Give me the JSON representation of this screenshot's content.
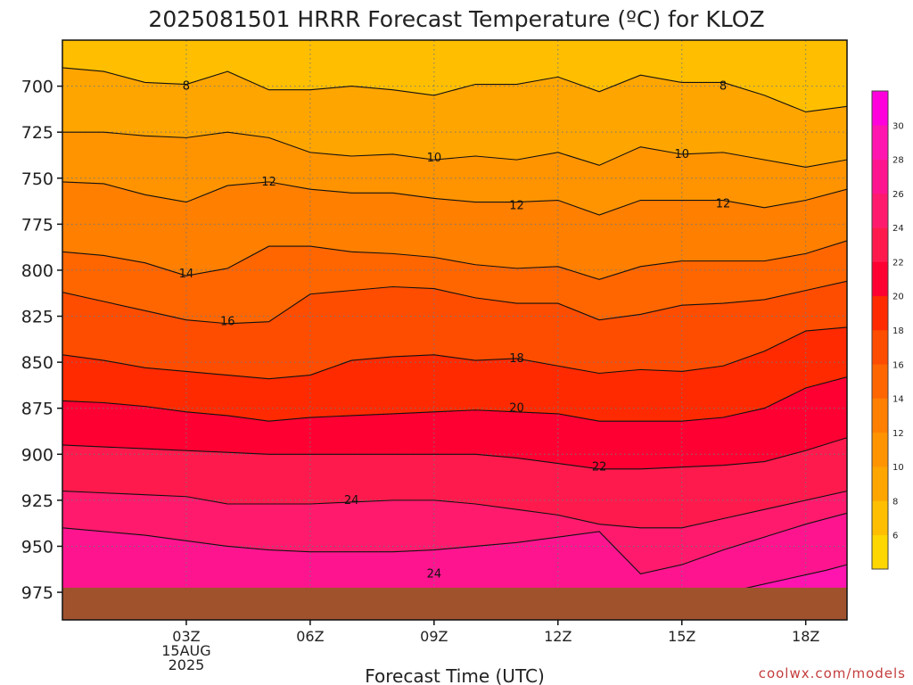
{
  "chart_data": {
    "type": "contour",
    "title": "2025081501 HRRR Forecast Temperature (ºC) for KLOZ",
    "xlabel": "Forecast Time (UTC)",
    "ylabel": "",
    "credit": "coolwx.com/models",
    "x_hours": [
      0,
      1,
      2,
      3,
      4,
      5,
      6,
      7,
      8,
      9,
      10,
      11,
      12,
      13,
      14,
      15,
      16,
      17,
      18,
      19
    ],
    "x_range": [
      0,
      19
    ],
    "x_ticks": [
      {
        "hour": 3,
        "label": "03Z"
      },
      {
        "hour": 6,
        "label": "06Z"
      },
      {
        "hour": 9,
        "label": "09Z"
      },
      {
        "hour": 12,
        "label": "12Z"
      },
      {
        "hour": 15,
        "label": "15Z"
      },
      {
        "hour": 18,
        "label": "18Z"
      }
    ],
    "date_label": [
      "15AUG",
      "2025"
    ],
    "y_range": [
      990,
      675
    ],
    "y_ticks": [
      700,
      725,
      750,
      775,
      800,
      825,
      850,
      875,
      900,
      925,
      950,
      975
    ],
    "grid": true,
    "surface_pressure": 972.5,
    "surface_color": "#a0522d",
    "colorbar": {
      "levels": [
        4,
        6,
        8,
        10,
        12,
        14,
        16,
        18,
        20,
        22,
        24,
        26,
        28,
        30,
        32
      ],
      "tick_labels": [
        "6",
        "8",
        "10",
        "12",
        "14",
        "16",
        "18",
        "20",
        "22",
        "24",
        "26",
        "28",
        "30"
      ],
      "colors": [
        "#ffd700",
        "#ffbf00",
        "#ffa500",
        "#ff9400",
        "#ff7f00",
        "#ff6600",
        "#ff4d00",
        "#ff2a00",
        "#ff0033",
        "#ff1a4d",
        "#ff1a6e",
        "#ff1490",
        "#ff14b0",
        "#ff00dd"
      ]
    },
    "contours": [
      {
        "level": 8,
        "label": "8",
        "label_points": [
          [
            3,
            700
          ],
          [
            16,
            700
          ]
        ],
        "pressures": [
          690,
          692,
          698,
          699,
          692,
          702,
          702,
          700,
          702,
          705,
          699,
          699,
          695,
          703,
          694,
          698,
          698,
          705,
          714,
          711
        ]
      },
      {
        "level": 10,
        "label": "10",
        "label_points": [
          [
            9,
            739
          ],
          [
            15,
            737
          ]
        ],
        "pressures": [
          725,
          725,
          727,
          728,
          725,
          728,
          736,
          738,
          737,
          740,
          738,
          740,
          736,
          743,
          733,
          737,
          736,
          740,
          744,
          740
        ]
      },
      {
        "level": 12,
        "label": "12",
        "label_points": [
          [
            5,
            752
          ],
          [
            11,
            765
          ],
          [
            16,
            764
          ]
        ],
        "pressures": [
          752,
          753,
          759,
          763,
          754,
          752,
          756,
          758,
          758,
          761,
          763,
          763,
          762,
          770,
          762,
          762,
          762,
          766,
          762,
          756
        ]
      },
      {
        "level": 14,
        "label": "14",
        "label_points": [
          [
            3,
            802
          ]
        ],
        "pressures": [
          790,
          792,
          796,
          803,
          799,
          787,
          787,
          790,
          791,
          793,
          797,
          799,
          798,
          805,
          798,
          795,
          795,
          795,
          791,
          784
        ]
      },
      {
        "level": 16,
        "label": "16",
        "label_points": [
          [
            4,
            828
          ]
        ],
        "pressures": [
          812,
          817,
          822,
          827,
          829,
          828,
          813,
          811,
          809,
          810,
          815,
          818,
          818,
          827,
          824,
          819,
          818,
          816,
          811,
          806
        ]
      },
      {
        "level": 18,
        "label": "18",
        "label_points": [
          [
            11,
            848
          ]
        ],
        "pressures": [
          846,
          849,
          853,
          855,
          857,
          859,
          857,
          849,
          847,
          846,
          849,
          848,
          852,
          856,
          854,
          855,
          852,
          844,
          833,
          831
        ]
      },
      {
        "level": 20,
        "label": "20",
        "label_points": [
          [
            11,
            875
          ]
        ],
        "pressures": [
          871,
          872,
          874,
          877,
          879,
          882,
          880,
          879,
          878,
          877,
          876,
          877,
          878,
          882,
          882,
          882,
          880,
          875,
          864,
          858
        ]
      },
      {
        "level": 22,
        "label": "22",
        "label_points": [
          [
            13,
            907
          ]
        ],
        "pressures": [
          895,
          896,
          897,
          898,
          899,
          900,
          900,
          900,
          900,
          900,
          900,
          902,
          905,
          908,
          908,
          907,
          906,
          904,
          898,
          891
        ]
      },
      {
        "level": 24,
        "label": "24",
        "label_points": [
          [
            7,
            925
          ],
          [
            9,
            965
          ]
        ],
        "pressures": [
          920,
          921,
          922,
          923,
          927,
          927,
          927,
          926,
          925,
          925,
          927,
          930,
          933,
          938,
          940,
          940,
          935,
          930,
          925,
          920
        ]
      },
      {
        "level": 26,
        "label": "",
        "label_points": [],
        "pressures": [
          940,
          942,
          944,
          947,
          950,
          952,
          953,
          953,
          953,
          952,
          950,
          948,
          945,
          942,
          965,
          960,
          952,
          945,
          938,
          932
        ]
      }
    ]
  }
}
